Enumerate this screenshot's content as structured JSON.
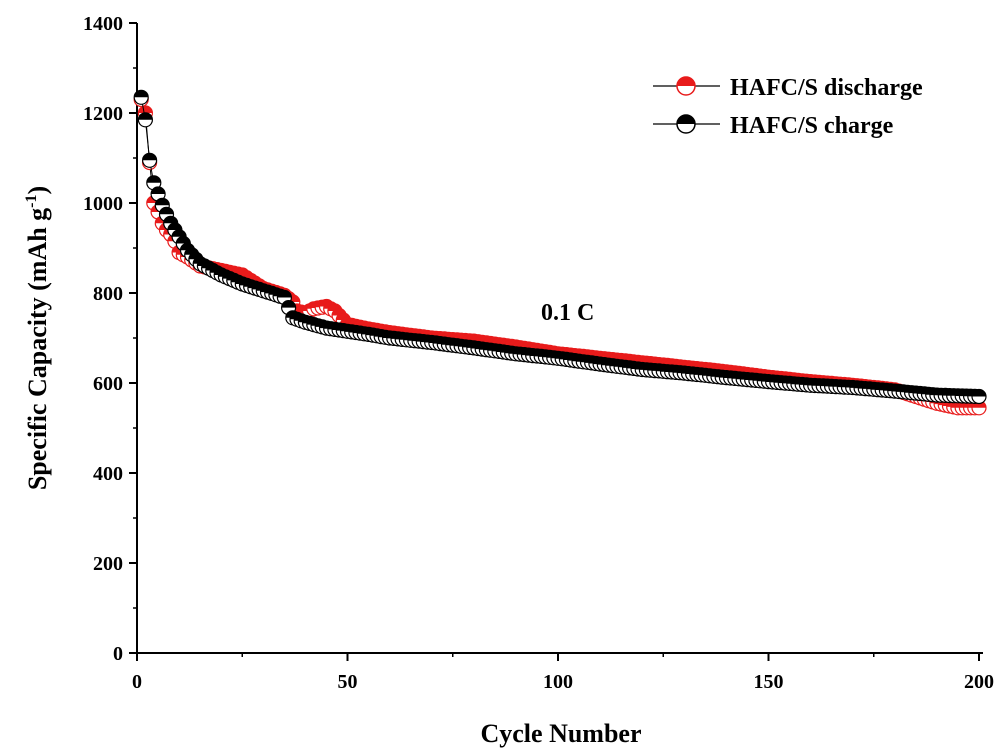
{
  "chart_data": {
    "type": "scatter",
    "xlabel": "Cycle Number",
    "ylabel": "Specific Capacity (mAh g",
    "ylabel_sup": "-1",
    "ylabel_end": ")",
    "xlim": [
      0,
      200
    ],
    "ylim": [
      0,
      1400
    ],
    "xticks": [
      0,
      50,
      100,
      150,
      200
    ],
    "yticks": [
      0,
      200,
      400,
      600,
      800,
      1000,
      1200,
      1400
    ],
    "grid": false,
    "legend_position": "top-right",
    "annotation": "0.1 C",
    "colors": {
      "discharge": "#e81b1b",
      "charge": "#000000",
      "axis": "#000000"
    },
    "series": [
      {
        "name": "HAFC/S discharge",
        "anchors": [
          [
            1,
            1230
          ],
          [
            2,
            1200
          ],
          [
            3,
            1090
          ],
          [
            4,
            1000
          ],
          [
            5,
            980
          ],
          [
            6,
            955
          ],
          [
            7,
            940
          ],
          [
            8,
            930
          ],
          [
            9,
            915
          ],
          [
            10,
            890
          ],
          [
            12,
            880
          ],
          [
            15,
            860
          ],
          [
            20,
            850
          ],
          [
            25,
            840
          ],
          [
            30,
            810
          ],
          [
            35,
            795
          ],
          [
            37,
            780
          ],
          [
            38,
            760
          ],
          [
            40,
            755
          ],
          [
            42,
            765
          ],
          [
            45,
            770
          ],
          [
            47,
            760
          ],
          [
            50,
            730
          ],
          [
            55,
            720
          ],
          [
            60,
            712
          ],
          [
            70,
            700
          ],
          [
            80,
            693
          ],
          [
            90,
            680
          ],
          [
            100,
            665
          ],
          [
            110,
            655
          ],
          [
            120,
            645
          ],
          [
            130,
            635
          ],
          [
            140,
            625
          ],
          [
            150,
            613
          ],
          [
            160,
            603
          ],
          [
            170,
            595
          ],
          [
            180,
            585
          ],
          [
            185,
            570
          ],
          [
            190,
            555
          ],
          [
            195,
            545
          ],
          [
            200,
            545
          ]
        ]
      },
      {
        "name": "HAFC/S charge",
        "anchors": [
          [
            1,
            1235
          ],
          [
            2,
            1185
          ],
          [
            3,
            1095
          ],
          [
            4,
            1045
          ],
          [
            5,
            1020
          ],
          [
            6,
            995
          ],
          [
            7,
            975
          ],
          [
            8,
            955
          ],
          [
            10,
            925
          ],
          [
            12,
            895
          ],
          [
            15,
            865
          ],
          [
            20,
            840
          ],
          [
            25,
            820
          ],
          [
            30,
            805
          ],
          [
            35,
            790
          ],
          [
            37,
            745
          ],
          [
            40,
            735
          ],
          [
            45,
            722
          ],
          [
            50,
            715
          ],
          [
            55,
            708
          ],
          [
            60,
            700
          ],
          [
            70,
            690
          ],
          [
            80,
            678
          ],
          [
            90,
            665
          ],
          [
            100,
            655
          ],
          [
            110,
            642
          ],
          [
            120,
            630
          ],
          [
            130,
            622
          ],
          [
            140,
            612
          ],
          [
            150,
            603
          ],
          [
            160,
            595
          ],
          [
            170,
            590
          ],
          [
            180,
            582
          ],
          [
            190,
            573
          ],
          [
            200,
            570
          ]
        ]
      }
    ]
  }
}
